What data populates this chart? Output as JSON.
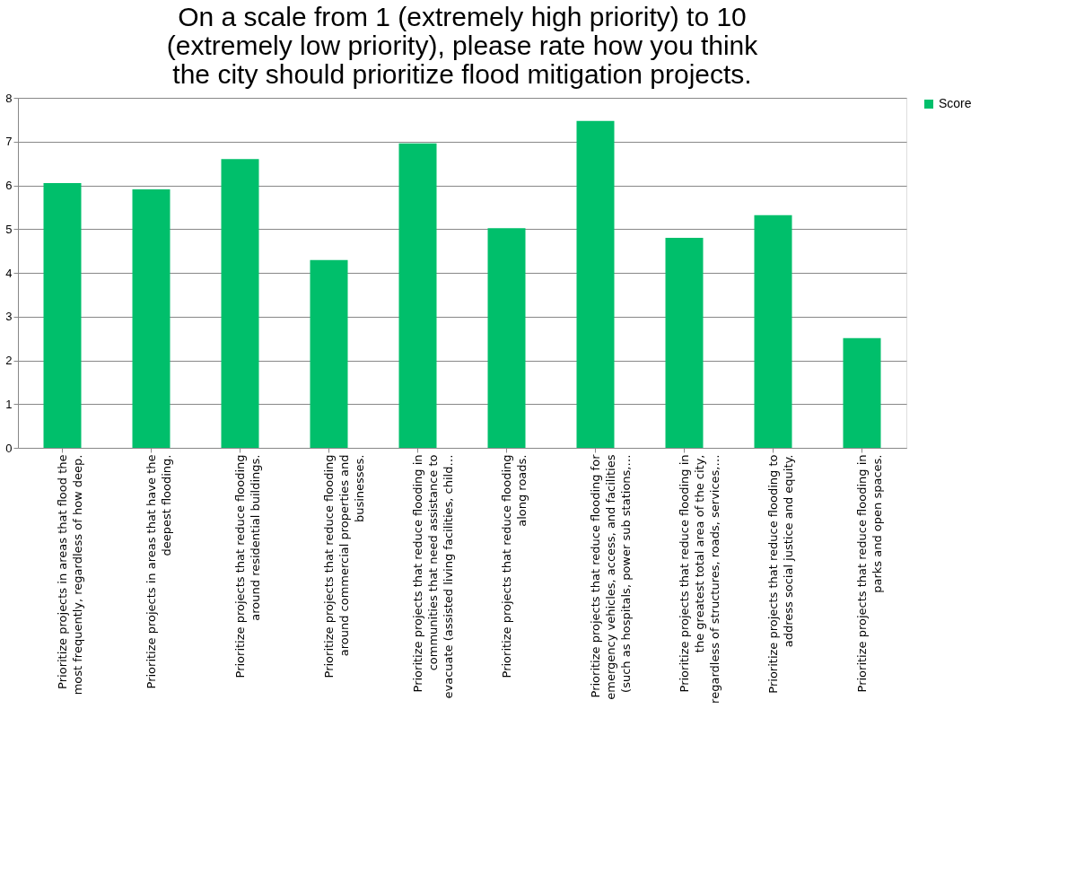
{
  "chart_data": {
    "type": "bar",
    "title": [
      "On a scale from 1 (extremely high priority) to 10",
      "(extremely low priority), please rate how  you think",
      "the city should prioritize flood mitigation projects."
    ],
    "categories": [
      "Prioritize projects in areas that flood the\nmost frequently, regardless of how deep.",
      "Prioritize projects in areas that have the\ndeepest flooding.",
      "Prioritize projects that reduce flooding\naround residential buildings.",
      "Prioritize projects that reduce flooding\naround commercial properties and\nbusinesses.",
      "Prioritize projects that reduce flooding in\ncommunities that need assistance to\nevacuate (assisted living facilities, child…",
      "Prioritize projects that reduce flooding\nalong roads.",
      "Prioritize projects that reduce flooding for\nemergency vehicles, access, and facilities\n(such as hospitals, power sub stations,…",
      "Prioritize projects that reduce flooding in\nthe greatest total area of the city,\nregardless of structures, roads, services,…",
      "Prioritize projects that reduce flooding to\naddress social justice and equity.",
      "Prioritize projects that reduce flooding in\nparks and open spaces."
    ],
    "series": [
      {
        "name": "Score",
        "color": "#00bf6b",
        "values": [
          6.05,
          5.91,
          6.6,
          4.29,
          6.96,
          5.02,
          7.47,
          4.8,
          5.32,
          2.51
        ]
      }
    ],
    "ylim": [
      0,
      8
    ],
    "yticks": [
      0,
      1,
      2,
      3,
      4,
      5,
      6,
      7,
      8
    ],
    "grid": "y",
    "legend": "right"
  }
}
